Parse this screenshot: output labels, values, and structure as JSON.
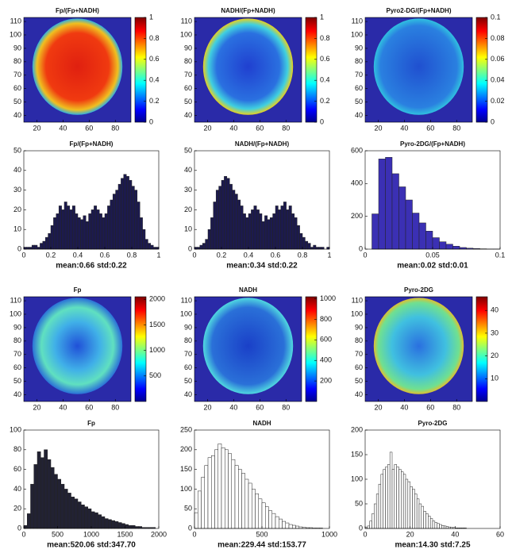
{
  "chart_data": [
    {
      "type": "heatmap",
      "title": "Fp/(Fp+NADH)",
      "xlim": [
        10,
        92
      ],
      "xticks": [
        20,
        40,
        60,
        80
      ],
      "ylim": [
        35,
        113
      ],
      "yticks": [
        40,
        50,
        60,
        70,
        80,
        90,
        100,
        110
      ],
      "clim": [
        0,
        1
      ],
      "cticks": [
        0,
        0.2,
        0.4,
        0.6,
        0.8,
        1
      ]
    },
    {
      "type": "heatmap",
      "title": "NADH/(Fp+NADH)",
      "xlim": [
        10,
        92
      ],
      "xticks": [
        20,
        40,
        60,
        80
      ],
      "ylim": [
        35,
        113
      ],
      "yticks": [
        40,
        50,
        60,
        70,
        80,
        90,
        100,
        110
      ],
      "clim": [
        0,
        1
      ],
      "cticks": [
        0,
        0.2,
        0.4,
        0.6,
        0.8,
        1
      ]
    },
    {
      "type": "heatmap",
      "title": "Pyro2-DG/(Fp+NADH)",
      "xlim": [
        10,
        92
      ],
      "xticks": [
        20,
        40,
        60,
        80
      ],
      "ylim": [
        35,
        113
      ],
      "yticks": [
        40,
        50,
        60,
        70,
        80,
        90,
        100,
        110
      ],
      "clim": [
        0,
        0.1
      ],
      "cticks": [
        0,
        0.02,
        0.04,
        0.06,
        0.08,
        0.1
      ]
    },
    {
      "type": "histogram",
      "title": "Fp/(Fp+NADH)",
      "caption": "mean:0.66 std:0.22",
      "color": "#1c1a4e",
      "xlim": [
        0,
        1
      ],
      "xticks": [
        0,
        0.2,
        0.4,
        0.6,
        0.8,
        1
      ],
      "ylim": [
        0,
        50
      ],
      "yticks": [
        0,
        10,
        20,
        30,
        40,
        50
      ],
      "bins": [
        0,
        0.02,
        0.04,
        0.06,
        0.08,
        0.1,
        0.12,
        0.14,
        0.16,
        0.18,
        0.2,
        0.22,
        0.24,
        0.26,
        0.28,
        0.3,
        0.32,
        0.34,
        0.36,
        0.38,
        0.4,
        0.42,
        0.44,
        0.46,
        0.48,
        0.5,
        0.52,
        0.54,
        0.56,
        0.58,
        0.6,
        0.62,
        0.64,
        0.66,
        0.68,
        0.7,
        0.72,
        0.74,
        0.76,
        0.78,
        0.8,
        0.82,
        0.84,
        0.86,
        0.88,
        0.9,
        0.92,
        0.94,
        0.96,
        0.98,
        1
      ],
      "values": [
        1,
        1,
        1,
        2,
        2,
        1,
        3,
        4,
        6,
        8,
        12,
        16,
        18,
        22,
        20,
        24,
        22,
        20,
        22,
        18,
        16,
        15,
        17,
        14,
        18,
        20,
        22,
        20,
        18,
        16,
        18,
        22,
        25,
        28,
        30,
        33,
        36,
        38,
        37,
        35,
        32,
        30,
        24,
        16,
        10,
        5,
        3,
        2,
        1,
        1
      ]
    },
    {
      "type": "histogram",
      "title": "NADH/(Fp+NADH)",
      "caption": "mean:0.34 std:0.22",
      "color": "#1c1a4e",
      "xlim": [
        0,
        1
      ],
      "xticks": [
        0,
        0.2,
        0.4,
        0.6,
        0.8,
        1
      ],
      "ylim": [
        0,
        50
      ],
      "yticks": [
        0,
        10,
        20,
        30,
        40,
        50
      ],
      "bins": [
        0,
        0.02,
        0.04,
        0.06,
        0.08,
        0.1,
        0.12,
        0.14,
        0.16,
        0.18,
        0.2,
        0.22,
        0.24,
        0.26,
        0.28,
        0.3,
        0.32,
        0.34,
        0.36,
        0.38,
        0.4,
        0.42,
        0.44,
        0.46,
        0.48,
        0.5,
        0.52,
        0.54,
        0.56,
        0.58,
        0.6,
        0.62,
        0.64,
        0.66,
        0.68,
        0.7,
        0.72,
        0.74,
        0.76,
        0.78,
        0.8,
        0.82,
        0.84,
        0.86,
        0.88,
        0.9,
        0.92,
        0.94,
        0.96,
        0.98,
        1
      ],
      "values": [
        1,
        1,
        2,
        3,
        5,
        10,
        16,
        24,
        30,
        32,
        35,
        37,
        36,
        33,
        30,
        28,
        25,
        22,
        18,
        16,
        18,
        20,
        22,
        20,
        18,
        14,
        17,
        15,
        16,
        18,
        22,
        20,
        22,
        24,
        20,
        22,
        18,
        16,
        12,
        8,
        6,
        4,
        3,
        1,
        2,
        1,
        1,
        1,
        0,
        1
      ]
    },
    {
      "type": "histogram",
      "title": "Pyro-2DG/(Fp+NADH)",
      "caption": "mean:0.02 std:0.01",
      "color": "#3b30b4",
      "xlim": [
        0,
        0.1
      ],
      "xticks": [
        0,
        0.05,
        0.1
      ],
      "ylim": [
        0,
        600
      ],
      "yticks": [
        0,
        200,
        400,
        600
      ],
      "bins": [
        0.005,
        0.01,
        0.015,
        0.02,
        0.025,
        0.03,
        0.035,
        0.04,
        0.045,
        0.05,
        0.055,
        0.06,
        0.065,
        0.07,
        0.075,
        0.08,
        0.085,
        0.09,
        0.095,
        0.1
      ],
      "values": [
        215,
        550,
        560,
        460,
        380,
        300,
        220,
        160,
        110,
        70,
        45,
        30,
        18,
        10,
        6,
        4,
        2,
        1,
        1
      ]
    },
    {
      "type": "heatmap",
      "title": "Fp",
      "xlim": [
        10,
        92
      ],
      "xticks": [
        20,
        40,
        60,
        80
      ],
      "ylim": [
        35,
        113
      ],
      "yticks": [
        40,
        50,
        60,
        70,
        80,
        90,
        100,
        110
      ],
      "clim": [
        0,
        2050
      ],
      "cticks": [
        500,
        1000,
        1500,
        2000
      ]
    },
    {
      "type": "heatmap",
      "title": "NADH",
      "xlim": [
        10,
        92
      ],
      "xticks": [
        20,
        40,
        60,
        80
      ],
      "ylim": [
        35,
        113
      ],
      "yticks": [
        40,
        50,
        60,
        70,
        80,
        90,
        100,
        110
      ],
      "clim": [
        0,
        1020
      ],
      "cticks": [
        200,
        400,
        600,
        800,
        1000
      ]
    },
    {
      "type": "heatmap",
      "title": "Pyro-2DG",
      "xlim": [
        10,
        92
      ],
      "xticks": [
        20,
        40,
        60,
        80
      ],
      "ylim": [
        35,
        113
      ],
      "yticks": [
        40,
        50,
        60,
        70,
        80,
        90,
        100,
        110
      ],
      "clim": [
        0,
        46
      ],
      "cticks": [
        10,
        20,
        30,
        40
      ]
    },
    {
      "type": "histogram",
      "title": "Fp",
      "caption": "mean:520.06 std:347.70",
      "color": "#222233",
      "xlim": [
        0,
        2000
      ],
      "xticks": [
        0,
        500,
        1000,
        1500,
        2000
      ],
      "ylim": [
        0,
        100
      ],
      "yticks": [
        0,
        20,
        40,
        60,
        80,
        100
      ],
      "bins": [
        0,
        50,
        100,
        150,
        200,
        250,
        300,
        350,
        400,
        450,
        500,
        550,
        600,
        650,
        700,
        750,
        800,
        850,
        900,
        950,
        1000,
        1050,
        1100,
        1150,
        1200,
        1250,
        1300,
        1350,
        1400,
        1450,
        1500,
        1550,
        1600,
        1650,
        1700,
        1750,
        1800,
        1850,
        1900,
        1950,
        2000
      ],
      "values": [
        3,
        15,
        45,
        65,
        78,
        72,
        80,
        70,
        62,
        55,
        50,
        45,
        40,
        36,
        32,
        30,
        27,
        24,
        22,
        20,
        17,
        16,
        14,
        12,
        10,
        9,
        8,
        7,
        6,
        5,
        4,
        3,
        3,
        2,
        2,
        1,
        1,
        1,
        1,
        0
      ]
    },
    {
      "type": "histogram",
      "title": "NADH",
      "caption": "mean:229.44 std:153.77",
      "color": "#ffffff",
      "xlim": [
        0,
        1000
      ],
      "xticks": [
        0,
        500,
        1000
      ],
      "ylim": [
        0,
        250
      ],
      "yticks": [
        0,
        50,
        100,
        150,
        200,
        250
      ],
      "bins": [
        0,
        25,
        50,
        75,
        100,
        125,
        150,
        175,
        200,
        225,
        250,
        275,
        300,
        325,
        350,
        375,
        400,
        425,
        450,
        475,
        500,
        525,
        550,
        575,
        600,
        625,
        650,
        675,
        700,
        725,
        750,
        775,
        800,
        825,
        850,
        875,
        900,
        925,
        950,
        975,
        1000
      ],
      "values": [
        40,
        95,
        130,
        160,
        180,
        185,
        200,
        215,
        205,
        200,
        190,
        175,
        160,
        150,
        140,
        125,
        115,
        100,
        88,
        75,
        65,
        55,
        45,
        38,
        30,
        24,
        18,
        14,
        10,
        8,
        6,
        4,
        3,
        2,
        2,
        1,
        1,
        1,
        0,
        0
      ]
    },
    {
      "type": "histogram",
      "title": "Pyro-2DG",
      "caption": "mean:14.30 std:7.25",
      "color": "#ffffff",
      "xlim": [
        0,
        60
      ],
      "xticks": [
        0,
        20,
        40,
        60
      ],
      "ylim": [
        0,
        200
      ],
      "yticks": [
        0,
        50,
        100,
        150,
        200
      ],
      "bins": [
        0,
        1,
        2,
        3,
        4,
        5,
        6,
        7,
        8,
        9,
        10,
        11,
        12,
        13,
        14,
        15,
        16,
        17,
        18,
        19,
        20,
        21,
        22,
        23,
        24,
        25,
        26,
        27,
        28,
        29,
        30,
        31,
        32,
        33,
        34,
        35,
        36,
        37,
        38,
        39,
        40,
        41,
        42,
        43,
        44,
        45,
        46,
        47,
        48,
        49,
        50
      ],
      "values": [
        2,
        5,
        15,
        30,
        50,
        70,
        90,
        110,
        120,
        125,
        130,
        155,
        120,
        130,
        125,
        120,
        115,
        110,
        100,
        95,
        85,
        80,
        70,
        60,
        50,
        45,
        35,
        30,
        25,
        20,
        15,
        12,
        10,
        8,
        6,
        5,
        4,
        3,
        2,
        2,
        1,
        1,
        1,
        1,
        1,
        0,
        0,
        0,
        0,
        0
      ]
    }
  ]
}
